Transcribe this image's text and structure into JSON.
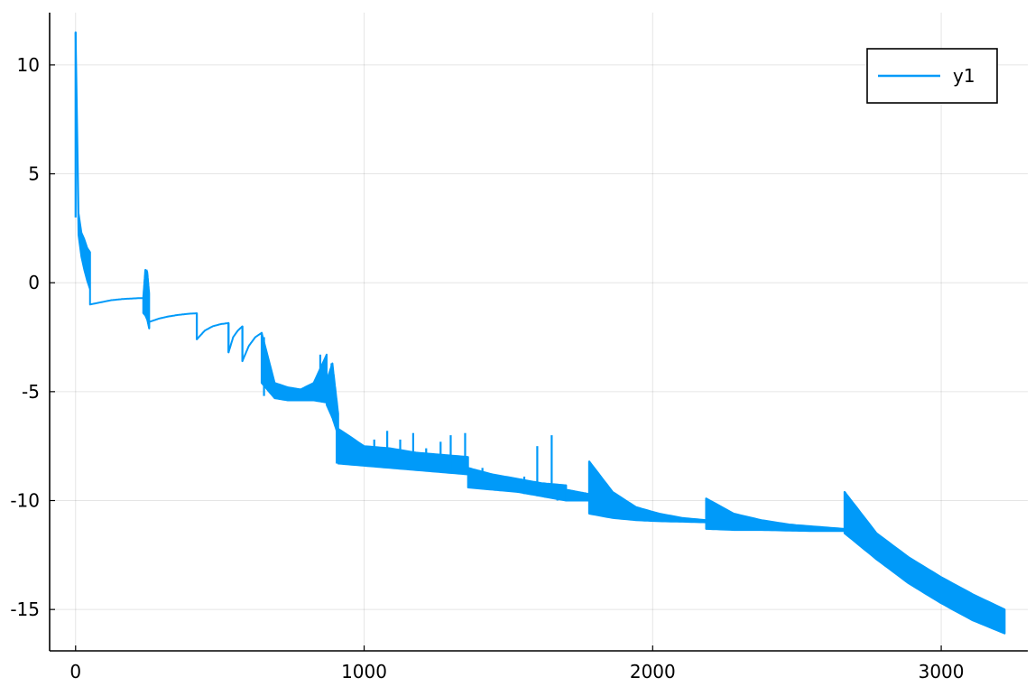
{
  "chart_data": {
    "type": "line",
    "title": "",
    "xlabel": "",
    "ylabel": "",
    "xlim": [
      -90,
      3300
    ],
    "ylim": [
      -16.9,
      12.4
    ],
    "xticks": [
      0,
      1000,
      2000,
      3000
    ],
    "xtick_labels": [
      "0",
      "1000",
      "2000",
      "3000"
    ],
    "yticks": [
      10,
      5,
      0,
      -5,
      -10,
      -15
    ],
    "ytick_labels": [
      "10",
      "5",
      "0",
      "-5",
      "-10",
      "-15"
    ],
    "grid": true,
    "legend_position": "top-right",
    "series": [
      {
        "name": "y1",
        "color": "#009af9",
        "segments": [
          {
            "x0": 0,
            "x1": 50,
            "hi": [
              11.5,
              3.2,
              2.3,
              2.0,
              1.6,
              1.4
            ],
            "lo": [
              11.5,
              2.2,
              1.2,
              0.6,
              0.1,
              -0.3
            ]
          },
          {
            "x0": 50,
            "x1": 235,
            "hi": [
              -1.0,
              -0.9,
              -0.8,
              -0.75,
              -0.72,
              -0.7
            ],
            "lo": [
              -1.0,
              -0.9,
              -0.8,
              -0.75,
              -0.72,
              -0.7
            ]
          },
          {
            "x0": 235,
            "x1": 255,
            "hi": [
              -0.6,
              0.6,
              0.5,
              -0.5
            ],
            "lo": [
              -1.4,
              -1.5,
              -1.7,
              -2.1
            ]
          },
          {
            "x0": 255,
            "x1": 420,
            "hi": [
              -1.8,
              -1.65,
              -1.55,
              -1.48,
              -1.43,
              -1.4
            ],
            "lo": [
              -1.8,
              -1.65,
              -1.55,
              -1.48,
              -1.43,
              -1.4
            ]
          },
          {
            "x0": 420,
            "x1": 530,
            "hi": [
              -2.6,
              -2.2,
              -2.0,
              -1.9,
              -1.85
            ],
            "lo": [
              -2.6,
              -2.2,
              -2.0,
              -1.9,
              -1.85
            ]
          },
          {
            "x0": 530,
            "x1": 578,
            "hi": [
              -3.2,
              -2.5,
              -2.2,
              -2.0
            ],
            "lo": [
              -3.2,
              -2.5,
              -2.2,
              -2.0
            ]
          },
          {
            "x0": 578,
            "x1": 645,
            "hi": [
              -3.6,
              -2.9,
              -2.5,
              -2.3
            ],
            "lo": [
              -3.6,
              -2.9,
              -2.5,
              -2.3
            ]
          },
          {
            "x0": 645,
            "x1": 870,
            "hi": [
              -2.3,
              -4.6,
              -4.8,
              -4.9,
              -4.6,
              -3.3
            ],
            "lo": [
              -4.6,
              -5.3,
              -5.4,
              -5.4,
              -5.4,
              -5.5
            ]
          },
          {
            "x0": 870,
            "x1": 910,
            "hi": [
              -4.5,
              -3.7,
              -6.0
            ],
            "lo": [
              -5.6,
              -6.2,
              -7.0
            ]
          },
          {
            "x0": 910,
            "x1": 1360,
            "hi": [
              -6.7,
              -7.5,
              -7.6,
              -7.8,
              -7.9,
              -8.0
            ],
            "lo": [
              -8.3,
              -8.4,
              -8.5,
              -8.6,
              -8.7,
              -8.8
            ]
          },
          {
            "x0": 1360,
            "x1": 1700,
            "hi": [
              -8.5,
              -8.8,
              -9.0,
              -9.2,
              -9.3
            ],
            "lo": [
              -9.4,
              -9.5,
              -9.6,
              -9.8,
              -10.0
            ]
          },
          {
            "x0": 1700,
            "x1": 1780,
            "hi": [
              -9.5,
              -9.6,
              -9.7
            ],
            "lo": [
              -10.0,
              -10.0,
              -10.0
            ]
          },
          {
            "x0": 1780,
            "x1": 2185,
            "hi": [
              -8.2,
              -9.6,
              -10.3,
              -10.6,
              -10.8,
              -10.9
            ],
            "lo": [
              -10.6,
              -10.8,
              -10.9,
              -10.95,
              -10.97,
              -11.0
            ]
          },
          {
            "x0": 2185,
            "x1": 2665,
            "hi": [
              -9.9,
              -10.6,
              -10.9,
              -11.1,
              -11.2,
              -11.3
            ],
            "lo": [
              -11.3,
              -11.35,
              -11.35,
              -11.38,
              -11.4,
              -11.4
            ]
          },
          {
            "x0": 2665,
            "x1": 3220,
            "hi": [
              -9.6,
              -11.5,
              -12.6,
              -13.5,
              -14.3,
              -15.0
            ],
            "lo": [
              -11.5,
              -12.7,
              -13.8,
              -14.7,
              -15.5,
              -16.1
            ]
          }
        ],
        "spikes": [
          {
            "x": 0,
            "y0": 11.5,
            "y1": 3.0
          },
          {
            "x": 235,
            "y0": -0.7,
            "y1": -1.4
          },
          {
            "x": 246,
            "y0": 0.6,
            "y1": -1.6
          },
          {
            "x": 420,
            "y0": -1.4,
            "y1": -2.6
          },
          {
            "x": 530,
            "y0": -1.85,
            "y1": -3.2
          },
          {
            "x": 578,
            "y0": -2.0,
            "y1": -3.6
          },
          {
            "x": 645,
            "y0": -2.3,
            "y1": -4.6
          },
          {
            "x": 653,
            "y0": -2.5,
            "y1": -5.2
          },
          {
            "x": 848,
            "y0": -3.3,
            "y1": -5.4
          },
          {
            "x": 887,
            "y0": -3.7,
            "y1": -6.0
          },
          {
            "x": 905,
            "y0": -6.0,
            "y1": -8.3
          },
          {
            "x": 928,
            "y0": -7.0,
            "y1": -8.3
          },
          {
            "x": 955,
            "y0": -7.4,
            "y1": -8.3
          },
          {
            "x": 993,
            "y0": -7.6,
            "y1": -8.4
          },
          {
            "x": 1035,
            "y0": -7.2,
            "y1": -8.4
          },
          {
            "x": 1080,
            "y0": -6.8,
            "y1": -8.5
          },
          {
            "x": 1125,
            "y0": -7.2,
            "y1": -8.5
          },
          {
            "x": 1170,
            "y0": -6.9,
            "y1": -8.5
          },
          {
            "x": 1215,
            "y0": -7.6,
            "y1": -8.6
          },
          {
            "x": 1265,
            "y0": -7.3,
            "y1": -8.6
          },
          {
            "x": 1300,
            "y0": -7.0,
            "y1": -8.7
          },
          {
            "x": 1350,
            "y0": -6.9,
            "y1": -8.8
          },
          {
            "x": 1410,
            "y0": -8.5,
            "y1": -9.4
          },
          {
            "x": 1480,
            "y0": -8.9,
            "y1": -9.5
          },
          {
            "x": 1555,
            "y0": -8.9,
            "y1": -9.7
          },
          {
            "x": 1600,
            "y0": -7.5,
            "y1": -9.8
          },
          {
            "x": 1650,
            "y0": -7.0,
            "y1": -9.9
          },
          {
            "x": 1670,
            "y0": -9.3,
            "y1": -10.0
          },
          {
            "x": 1780,
            "y0": -8.2,
            "y1": -10.6
          },
          {
            "x": 2187,
            "y0": -9.9,
            "y1": -11.3
          },
          {
            "x": 2667,
            "y0": -9.6,
            "y1": -11.5
          }
        ]
      }
    ]
  }
}
